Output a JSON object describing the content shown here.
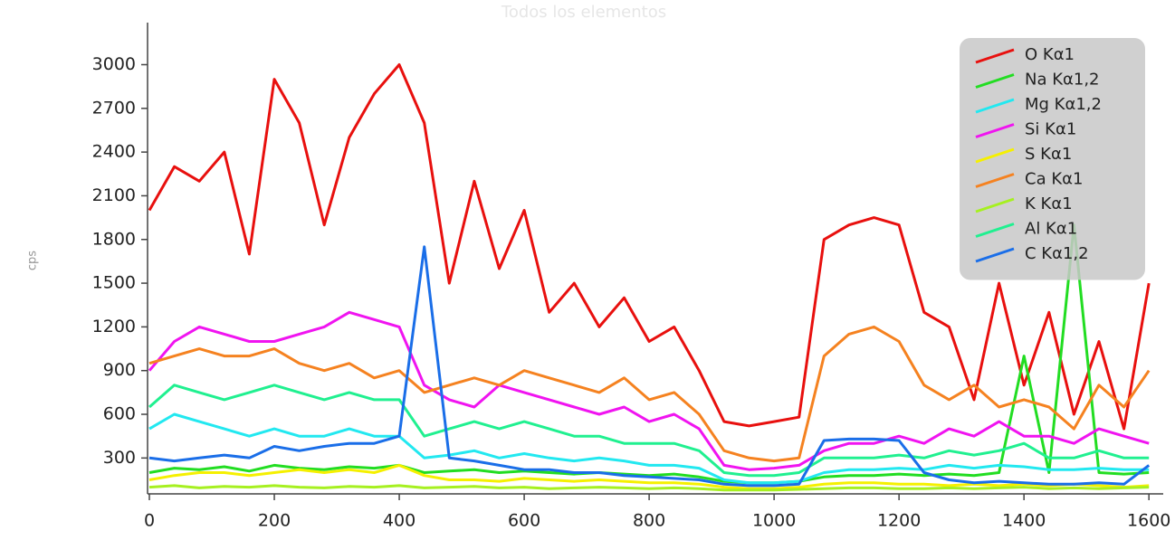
{
  "chart_data": {
    "type": "line",
    "title": "Todos los elementos",
    "ylabel": "cps",
    "x": [
      0,
      40,
      80,
      120,
      160,
      200,
      240,
      280,
      320,
      360,
      400,
      440,
      480,
      520,
      560,
      600,
      640,
      680,
      720,
      760,
      800,
      840,
      880,
      920,
      960,
      1000,
      1040,
      1080,
      1120,
      1160,
      1200,
      1240,
      1280,
      1320,
      1360,
      1400,
      1440,
      1480,
      1520,
      1560,
      1600
    ],
    "xlim": [
      0,
      1620
    ],
    "xticks": [
      0,
      200,
      400,
      600,
      800,
      1000,
      1200,
      1400,
      1600
    ],
    "ylim": [
      60,
      3270
    ],
    "yticks": [
      300,
      600,
      900,
      1200,
      1500,
      1800,
      2100,
      2400,
      2700,
      3000
    ],
    "legend": "upper right",
    "series": [
      {
        "name": "O Kα1",
        "color": "#e8100e",
        "values": [
          2000,
          2300,
          2200,
          2400,
          1700,
          2900,
          2600,
          1900,
          2500,
          2800,
          3000,
          2600,
          1500,
          2200,
          1600,
          2000,
          1300,
          1500,
          1200,
          1400,
          1100,
          1200,
          900,
          550,
          520,
          550,
          580,
          1800,
          1900,
          1950,
          1900,
          1300,
          1200,
          700,
          1500,
          800,
          1300,
          600,
          1100,
          500,
          1500
        ]
      },
      {
        "name": "Na Kα1,2",
        "color": "#22dd22",
        "values": [
          200,
          230,
          220,
          240,
          210,
          250,
          230,
          220,
          240,
          230,
          250,
          200,
          210,
          220,
          200,
          210,
          200,
          190,
          200,
          190,
          180,
          190,
          170,
          140,
          130,
          130,
          140,
          170,
          180,
          180,
          190,
          180,
          190,
          180,
          200,
          1000,
          200,
          1900,
          200,
          190,
          200
        ]
      },
      {
        "name": "Mg Kα1,2",
        "color": "#22e8f0",
        "values": [
          500,
          600,
          550,
          500,
          450,
          500,
          450,
          450,
          500,
          450,
          450,
          300,
          320,
          350,
          300,
          330,
          300,
          280,
          300,
          280,
          250,
          250,
          230,
          150,
          130,
          130,
          140,
          200,
          220,
          220,
          230,
          220,
          250,
          230,
          250,
          240,
          220,
          220,
          230,
          220,
          220
        ]
      },
      {
        "name": "Si Kα1",
        "color": "#f014f0",
        "values": [
          900,
          1100,
          1200,
          1150,
          1100,
          1100,
          1150,
          1200,
          1300,
          1250,
          1200,
          800,
          700,
          650,
          800,
          750,
          700,
          650,
          600,
          650,
          550,
          600,
          500,
          250,
          220,
          230,
          250,
          350,
          400,
          400,
          450,
          400,
          500,
          450,
          550,
          450,
          450,
          400,
          500,
          450,
          400
        ]
      },
      {
        "name": "S Kα1",
        "color": "#f5f000",
        "values": [
          150,
          180,
          200,
          200,
          180,
          200,
          220,
          200,
          220,
          200,
          250,
          180,
          150,
          150,
          140,
          160,
          150,
          140,
          150,
          140,
          130,
          130,
          120,
          100,
          90,
          90,
          100,
          120,
          130,
          130,
          120,
          120,
          110,
          120,
          110,
          120,
          110,
          120,
          110,
          100,
          110
        ]
      },
      {
        "name": "Ca Kα1",
        "color": "#f58220",
        "values": [
          950,
          1000,
          1050,
          1000,
          1000,
          1050,
          950,
          900,
          950,
          850,
          900,
          750,
          800,
          850,
          800,
          900,
          850,
          800,
          750,
          850,
          700,
          750,
          600,
          350,
          300,
          280,
          300,
          1000,
          1150,
          1200,
          1100,
          800,
          700,
          800,
          650,
          700,
          650,
          500,
          800,
          650,
          900
        ]
      },
      {
        "name": "K Kα1",
        "color": "#a6f020",
        "values": [
          100,
          110,
          95,
          105,
          100,
          110,
          100,
          95,
          105,
          100,
          110,
          95,
          100,
          105,
          95,
          100,
          90,
          95,
          100,
          95,
          90,
          95,
          90,
          80,
          80,
          80,
          85,
          90,
          95,
          95,
          90,
          90,
          95,
          90,
          95,
          100,
          90,
          95,
          90,
          95,
          100
        ]
      },
      {
        "name": "Al Kα1",
        "color": "#20f090",
        "values": [
          650,
          800,
          750,
          700,
          750,
          800,
          750,
          700,
          750,
          700,
          700,
          450,
          500,
          550,
          500,
          550,
          500,
          450,
          450,
          400,
          400,
          400,
          350,
          200,
          180,
          180,
          200,
          300,
          300,
          300,
          320,
          300,
          350,
          320,
          350,
          400,
          300,
          300,
          350,
          300,
          300
        ]
      },
      {
        "name": "C Kα1,2",
        "color": "#1a6ee8",
        "values": [
          300,
          280,
          300,
          320,
          300,
          380,
          350,
          380,
          400,
          400,
          450,
          1750,
          300,
          280,
          250,
          220,
          220,
          200,
          200,
          180,
          170,
          160,
          150,
          120,
          110,
          110,
          120,
          420,
          430,
          430,
          420,
          200,
          150,
          130,
          140,
          130,
          120,
          120,
          130,
          120,
          250
        ]
      }
    ]
  }
}
